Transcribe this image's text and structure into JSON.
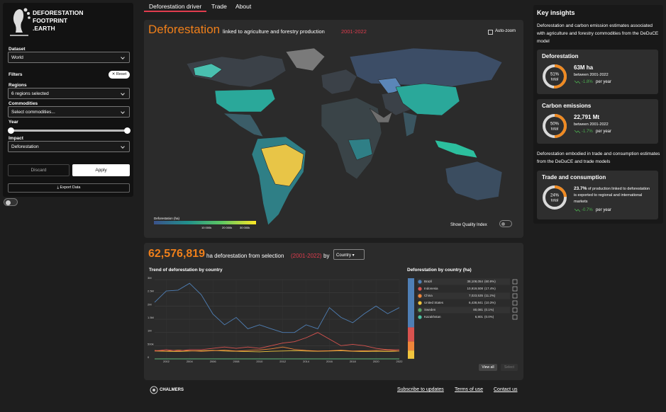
{
  "sidebar": {
    "logo": [
      "DEFORESTATION",
      "FOOTPRINT",
      ".EARTH"
    ],
    "dataset_label": "Dataset",
    "dataset": "World",
    "filters": "Filters",
    "reset": "Reset",
    "regions_label": "Regions",
    "regions": "6 regions selected",
    "commodities_label": "Commodities",
    "commodities": "Select commodities...",
    "year_label": "Year",
    "impact_label": "Impact",
    "impact": "Deforestation",
    "discard": "Discard",
    "apply": "Apply",
    "export": "Export Data"
  },
  "tabs": [
    "Deforestation driver",
    "Trade",
    "About"
  ],
  "map_panel": {
    "title": "Deforestation",
    "subtitle": "linked to agriculture and forestry production",
    "period": "2001-2022",
    "auto_zoom": "Auto-zoom",
    "legend_title": "Deforestation (ha)",
    "legend_ticks": [
      "10 000k",
      "20 000k",
      "30 000k"
    ],
    "quality_index": "Show Quality Index"
  },
  "summary": {
    "total": "62,576,819",
    "text": "ha deforestation from selection",
    "period": "(2001-2022)",
    "by": "by",
    "group": "Country"
  },
  "trend_chart": {
    "type": "line",
    "title": "Trend of deforestation by country",
    "x": [
      2001,
      2002,
      2003,
      2004,
      2005,
      2006,
      2007,
      2008,
      2009,
      2010,
      2011,
      2012,
      2013,
      2014,
      2015,
      2016,
      2017,
      2018,
      2019,
      2020,
      2021,
      2022
    ],
    "series": [
      {
        "color": "#4f7fb5",
        "values": [
          2140000,
          2570000,
          2600000,
          2860000,
          2430000,
          1700000,
          1290000,
          1570000,
          1140000,
          1290000,
          1140000,
          1000000,
          1000000,
          1290000,
          1140000,
          1940000,
          1570000,
          1370000,
          1710000,
          2000000,
          1710000,
          1940000
        ]
      },
      {
        "color": "#d9534f",
        "values": [
          300000,
          350000,
          300000,
          350000,
          350000,
          400000,
          450000,
          400000,
          450000,
          400000,
          500000,
          600000,
          650000,
          800000,
          1000000,
          750000,
          500000,
          550000,
          500000,
          400000,
          350000,
          350000
        ]
      },
      {
        "color": "#f0863a",
        "values": [
          320000,
          300000,
          330000,
          310000,
          290000,
          310000,
          330000,
          300000,
          320000,
          340000,
          380000,
          450000,
          360000,
          320000,
          300000,
          310000,
          330000,
          300000,
          310000,
          320000,
          330000,
          300000
        ]
      },
      {
        "color": "#f2c53d",
        "values": [
          300000,
          290000,
          280000,
          300000,
          310000,
          320000,
          300000,
          290000,
          280000,
          270000,
          290000,
          300000,
          310000,
          300000,
          290000,
          300000,
          310000,
          290000,
          280000,
          290000,
          280000,
          300000
        ]
      },
      {
        "color": "#5aa469",
        "values": [
          3500,
          3700,
          3600,
          3800,
          3400,
          3600,
          3700,
          3500,
          3600,
          3800,
          3700,
          3600,
          3500,
          3700,
          3600,
          3800,
          3700,
          3600,
          3500,
          3700,
          3600,
          3800
        ]
      },
      {
        "color": "#4cc3a3",
        "values": [
          300,
          310,
          290,
          320,
          300,
          310,
          300,
          290,
          310,
          320,
          300,
          310,
          300,
          290,
          310,
          300,
          320,
          310,
          300,
          290,
          310,
          300
        ]
      }
    ],
    "xlim": [
      2001,
      2022
    ],
    "xticks": [
      2002,
      2004,
      2006,
      2008,
      2010,
      2012,
      2014,
      2016,
      2018,
      2020,
      2022
    ],
    "ylim": [
      0,
      3000000
    ],
    "yticks": [
      0,
      {
        "value": 500000,
        "label": "500k"
      },
      {
        "value": 1000000,
        "label": "1M"
      },
      {
        "value": 1500000,
        "label": "1.5M"
      },
      {
        "value": 2000000,
        "label": "2M"
      },
      {
        "value": 2500000,
        "label": "2.5M"
      },
      {
        "value": 3000000,
        "label": "3M"
      }
    ],
    "grid": true
  },
  "country_table": {
    "title": "Deforestation by country (ha)",
    "rows": [
      {
        "name": "Brazil",
        "value": 38108054,
        "label": "38,108,054",
        "share": "(60.9%)"
      },
      {
        "name": "Indonesia",
        "value": 10919508,
        "label": "10,919,508",
        "share": "(17.4%)"
      },
      {
        "name": "China",
        "value": 7023535,
        "label": "7,023,535",
        "share": "(11.2%)"
      },
      {
        "name": "United States",
        "value": 6438841,
        "label": "6,438,841",
        "share": "(10.3%)"
      },
      {
        "name": "Sweden",
        "value": 80081,
        "label": "80,081",
        "share": "(0.1%)"
      },
      {
        "name": "Kazakhstan",
        "value": 6801,
        "label": "6,801",
        "share": "(0.0%)"
      }
    ],
    "view_all": "View all",
    "select": "Select"
  },
  "insights": {
    "title": "Key insights",
    "intro": "Deforestation and carbon emission estimates associated with agriculture and forestry commodities from the DeDuCE model",
    "cards": [
      {
        "title": "Deforestation",
        "donut": {
          "value": 51,
          "label": "51%"
        },
        "donut_caption": "total",
        "headline": "63M ha",
        "detail": "between 2001-2022",
        "trend": "-1.8%",
        "trend_unit": "per year"
      },
      {
        "title": "Carbon emissions",
        "donut": {
          "value": 50,
          "label": "50%"
        },
        "donut_caption": "total",
        "headline": "22,791 Mt",
        "detail": "between 2001-2022",
        "trend": "-1.7%",
        "trend_unit": "per year"
      },
      {
        "title": "Trade and consumption",
        "donut": {
          "value": 24,
          "label": "24%"
        },
        "donut_caption": "total",
        "headline": "23.7%",
        "detail": "of production linked to deforestation is exported to regional and international markets",
        "trend": "-0.7%",
        "trend_unit": "per year"
      }
    ],
    "trade_intro": "Deforestation embodied in trade and consumption estimates from the DeDuCE and trade models"
  },
  "footer": {
    "org": "CHALMERS",
    "links": [
      "Subscribe to updates",
      "Terms of use",
      "Contact us"
    ]
  }
}
